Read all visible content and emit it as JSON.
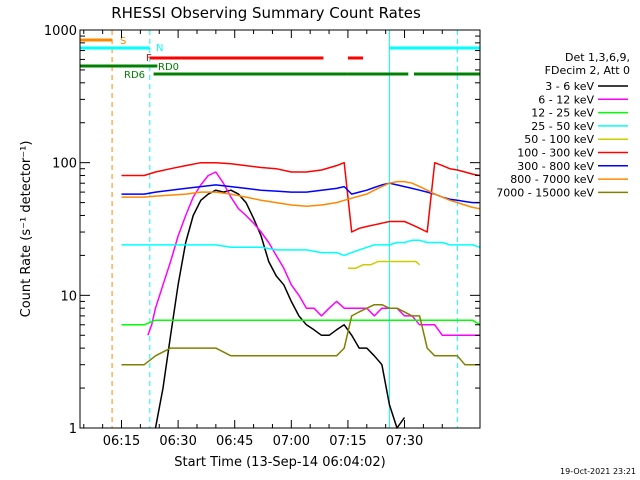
{
  "chart_data": {
    "type": "line",
    "title": "RHESSI Observing Summary Count Rates",
    "xlabel": "Start Time (13-Sep-14 06:04:02)",
    "ylabel": "Count Rate (s⁻¹ detector⁻¹)",
    "ylog": true,
    "ylim": [
      1,
      1000
    ],
    "xlim_minutes": [
      0,
      106
    ],
    "x_ticks": [
      {
        "label": "06:15",
        "min": 11
      },
      {
        "label": "06:30",
        "min": 26
      },
      {
        "label": "06:45",
        "min": 41
      },
      {
        "label": "07:00",
        "min": 56
      },
      {
        "label": "07:15",
        "min": 71
      },
      {
        "label": "07:30",
        "min": 86
      }
    ],
    "y_ticks": [
      {
        "label": "1",
        "v": 1
      },
      {
        "label": "10",
        "v": 10
      },
      {
        "label": "100",
        "v": 100
      },
      {
        "label": "1000",
        "v": 1000
      }
    ],
    "legend_title": [
      "Det 1,3,6,9,",
      "FDecim 2, Att 0"
    ],
    "series": [
      {
        "name": "3 - 6 keV",
        "color": "#000000",
        "x": [
          0,
          7,
          11,
          18,
          20,
          22,
          24,
          26,
          28,
          30,
          32,
          34,
          36,
          38,
          40,
          42,
          44,
          46,
          48,
          50,
          52,
          54,
          56,
          58,
          60,
          62,
          64,
          66,
          68,
          70,
          72,
          74,
          76,
          78,
          80,
          82,
          84,
          86,
          88,
          90,
          92,
          94,
          96,
          98,
          100,
          102,
          104,
          106
        ],
        "y": [
          null,
          null,
          null,
          null,
          1,
          2,
          5,
          12,
          25,
          40,
          52,
          58,
          62,
          60,
          62,
          58,
          50,
          38,
          28,
          18,
          14,
          12,
          9,
          7,
          6,
          5.5,
          5,
          5,
          5.5,
          6,
          5,
          4,
          4,
          3.5,
          3,
          1.5,
          1,
          1.2,
          null,
          null,
          null,
          null,
          null,
          null,
          null,
          null,
          null,
          null
        ]
      },
      {
        "name": "6 - 12 keV",
        "color": "#ff00ff",
        "x": [
          18,
          19,
          20,
          22,
          24,
          26,
          28,
          30,
          32,
          34,
          36,
          38,
          40,
          42,
          44,
          46,
          48,
          50,
          52,
          54,
          56,
          58,
          60,
          62,
          64,
          66,
          68,
          70,
          72,
          74,
          76,
          78,
          80,
          82,
          84,
          86,
          88,
          90,
          92,
          94,
          96,
          98,
          100,
          102,
          104,
          106
        ],
        "y": [
          5,
          6,
          8,
          12,
          18,
          28,
          40,
          55,
          68,
          80,
          85,
          70,
          55,
          45,
          40,
          35,
          30,
          25,
          20,
          16,
          12,
          10,
          8,
          8,
          7,
          8,
          9,
          8,
          8,
          8,
          8,
          7,
          8,
          8,
          8,
          7,
          7,
          6,
          6,
          6,
          5,
          5,
          5,
          5,
          5,
          5
        ]
      },
      {
        "name": "12 - 25 keV",
        "color": "#00ff00",
        "x": [
          11,
          14,
          17,
          20,
          22,
          24,
          26,
          28,
          30,
          32,
          34,
          36,
          38,
          40,
          42,
          44,
          46,
          48,
          50,
          52,
          54,
          56,
          58,
          60,
          62,
          64,
          66,
          68,
          70,
          72,
          74,
          76,
          78,
          80,
          82,
          84,
          86,
          88,
          90,
          92,
          94,
          96,
          98,
          100,
          102,
          104,
          106
        ],
        "y": [
          6,
          6,
          6,
          6.5,
          6.5,
          6.5,
          6.5,
          6.5,
          6.5,
          6.5,
          6.5,
          6.5,
          6.5,
          6.5,
          6.5,
          6.5,
          6.5,
          6.5,
          6.5,
          6.5,
          6.5,
          6.5,
          6.5,
          6.5,
          6.5,
          6.5,
          6.5,
          6.5,
          6.5,
          6.5,
          6.5,
          6.5,
          6.5,
          6.5,
          6.5,
          6.5,
          6.5,
          6.5,
          6.5,
          6.5,
          6.5,
          6.5,
          6.5,
          6.5,
          6.5,
          6.5,
          6
        ]
      },
      {
        "name": "25 - 50 keV",
        "color": "#00ffff",
        "x": [
          11,
          16,
          18,
          20,
          24,
          28,
          32,
          36,
          40,
          44,
          48,
          52,
          56,
          60,
          64,
          68,
          70,
          72,
          74,
          76,
          78,
          80,
          82,
          84,
          86,
          88,
          90,
          92,
          94,
          96,
          98,
          100,
          102,
          104,
          106
        ],
        "y": [
          24,
          24,
          24,
          24,
          24,
          24,
          24,
          24,
          23,
          23,
          23,
          22,
          22,
          22,
          21,
          21,
          20,
          21,
          22,
          23,
          24,
          24,
          24,
          25,
          25,
          26,
          26,
          25,
          25,
          25,
          24,
          24,
          24,
          24,
          23
        ]
      },
      {
        "name": "50 - 100 keV",
        "color": "#cccc00",
        "x": [
          71,
          73,
          75,
          77,
          79,
          81,
          83,
          85,
          87,
          89,
          90
        ],
        "y": [
          16,
          16,
          17,
          17,
          18,
          18,
          18,
          18,
          18,
          18,
          17
        ]
      },
      {
        "name": "100 - 300 keV",
        "color": "#ff0000",
        "x": [
          11,
          14,
          17,
          20,
          24,
          28,
          32,
          36,
          40,
          44,
          48,
          52,
          56,
          60,
          64,
          68,
          70,
          72,
          74,
          76,
          78,
          80,
          82,
          84,
          86,
          88,
          90,
          92,
          94,
          96,
          98,
          100,
          102,
          104,
          106
        ],
        "y": [
          80,
          80,
          80,
          85,
          90,
          95,
          100,
          100,
          98,
          95,
          92,
          90,
          85,
          85,
          88,
          95,
          100,
          30,
          32,
          33,
          34,
          35,
          36,
          36,
          36,
          34,
          32,
          30,
          100,
          95,
          90,
          88,
          85,
          82,
          80
        ]
      },
      {
        "name": "300 - 800 keV",
        "color": "#0000ff",
        "x": [
          11,
          14,
          17,
          20,
          24,
          28,
          32,
          36,
          40,
          44,
          48,
          52,
          56,
          60,
          64,
          68,
          70,
          72,
          74,
          76,
          78,
          80,
          82,
          84,
          86,
          88,
          90,
          92,
          94,
          96,
          98,
          100,
          102,
          104,
          106
        ],
        "y": [
          58,
          58,
          58,
          60,
          62,
          64,
          66,
          68,
          66,
          64,
          62,
          61,
          60,
          60,
          62,
          64,
          66,
          58,
          60,
          62,
          65,
          68,
          70,
          68,
          66,
          64,
          62,
          60,
          58,
          55,
          53,
          52,
          51,
          50,
          50
        ]
      },
      {
        "name": "800 - 7000 keV",
        "color": "#ff8800",
        "x": [
          11,
          14,
          17,
          20,
          24,
          28,
          32,
          36,
          40,
          44,
          48,
          52,
          56,
          60,
          64,
          68,
          70,
          72,
          74,
          76,
          78,
          80,
          82,
          84,
          86,
          88,
          90,
          92,
          94,
          96,
          98,
          100,
          102,
          104,
          106
        ],
        "y": [
          55,
          55,
          55,
          56,
          57,
          58,
          60,
          60,
          58,
          55,
          52,
          50,
          48,
          47,
          48,
          50,
          52,
          54,
          56,
          58,
          62,
          66,
          70,
          72,
          72,
          70,
          66,
          62,
          58,
          55,
          52,
          50,
          48,
          46,
          45
        ]
      },
      {
        "name": "7000 - 15000 keV",
        "color": "#808000",
        "x": [
          11,
          14,
          17,
          20,
          24,
          28,
          32,
          36,
          40,
          44,
          48,
          52,
          56,
          60,
          64,
          68,
          70,
          72,
          74,
          76,
          78,
          80,
          82,
          84,
          86,
          88,
          90,
          92,
          94,
          96,
          98,
          100,
          102,
          104,
          106
        ],
        "y": [
          3,
          3,
          3,
          3.5,
          4,
          4,
          4,
          4,
          3.5,
          3.5,
          3.5,
          3.5,
          3.5,
          3.5,
          3.5,
          3.5,
          4,
          7,
          7.5,
          8,
          8.5,
          8.5,
          8,
          8,
          7.5,
          7,
          7,
          4,
          3.5,
          3.5,
          3.5,
          3.5,
          3,
          3,
          3
        ]
      }
    ],
    "flags": [
      {
        "label": "S",
        "color": "#ff8800",
        "segments": [
          [
            0,
            8.5
          ]
        ]
      },
      {
        "label": "N",
        "color": "#00ffff",
        "segments": [
          [
            0,
            18.5
          ],
          [
            82,
            106
          ]
        ]
      },
      {
        "label": "F",
        "color": "#ff0000",
        "segments": [
          [
            18.5,
            64.5
          ],
          [
            71,
            75
          ]
        ]
      },
      {
        "label": "RD6",
        "color": "#008000",
        "segments": [
          [
            0,
            20.5
          ],
          [
            71,
            87
          ],
          [
            88.5,
            106
          ]
        ]
      },
      {
        "label": "RD0",
        "color": "#008000",
        "segments": [
          [
            19.5,
            71
          ]
        ]
      }
    ],
    "vlines": [
      {
        "color": "#ff8800",
        "min": 8.5,
        "dashed": true
      },
      {
        "color": "#00ffff",
        "min": 18.5,
        "dashed": true
      },
      {
        "color": "#00ffff",
        "min": 82,
        "dashed": false
      },
      {
        "color": "#00ffff",
        "min": 100,
        "dashed": true
      }
    ],
    "grid": false,
    "legend_position": "right"
  },
  "footer_date": "19-Oct-2021 23:21"
}
